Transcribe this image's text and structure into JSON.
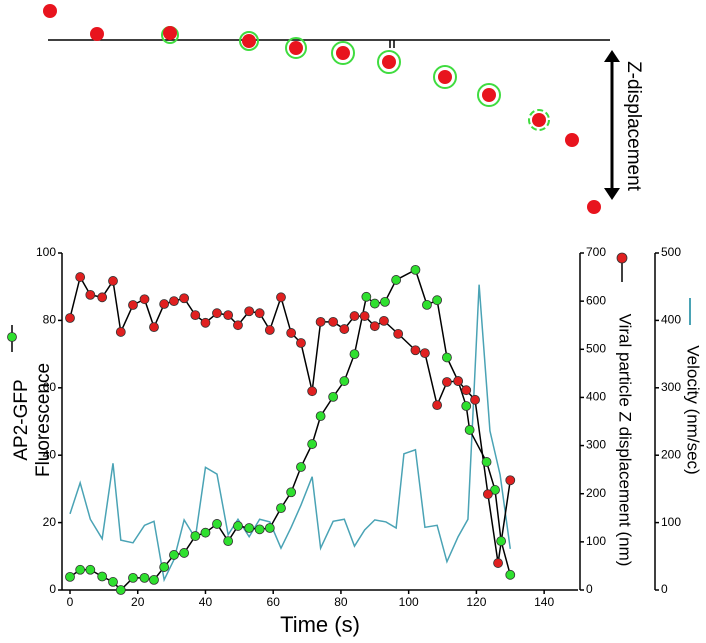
{
  "chart_data": {
    "type": "line",
    "annotation": "Z-displacement",
    "xlabel": "Time (s)",
    "ylabel": [
      "AP2-GFP",
      "Fluorescence"
    ],
    "y2label": "Viral particle Z displacement  (nm)",
    "y3label": "Velocity (nm/sec)",
    "xlim": [
      0,
      150
    ],
    "xticks": [
      0,
      20,
      40,
      60,
      80,
      100,
      120,
      140
    ],
    "ylim": [
      0,
      100
    ],
    "yticks": [
      0,
      20,
      40,
      60,
      80,
      100
    ],
    "y2lim": [
      0,
      700
    ],
    "y2ticks": [
      0,
      100,
      200,
      300,
      400,
      500,
      600,
      700
    ],
    "y3lim": [
      0,
      500
    ],
    "y3ticks": [
      0,
      100,
      200,
      300,
      400,
      500
    ],
    "series": [
      {
        "name": "AP2-GFP Fluorescence",
        "color": "#2fe02f",
        "axis": "y",
        "marker": true,
        "x": [
          0,
          3,
          6,
          9.5,
          12.7,
          15,
          18.6,
          22,
          24.8,
          27.8,
          30.7,
          33.7,
          37,
          40,
          43.4,
          46.7,
          49.6,
          52.9,
          56,
          59,
          62.3,
          65.3,
          68.2,
          71.5,
          74,
          77.7,
          81,
          84,
          87.5,
          90,
          93,
          96.3,
          102,
          105.4,
          108.4,
          111.3,
          114.6,
          117,
          118,
          123,
          125.5,
          127.3,
          130
        ],
        "values": [
          3.9,
          6,
          6,
          4,
          2.4,
          0,
          3.6,
          3.6,
          3,
          6.8,
          10.4,
          11,
          16,
          17,
          19.6,
          14.5,
          19,
          18.4,
          18,
          18.4,
          24.3,
          29,
          36.5,
          43.3,
          51.6,
          57.3,
          62,
          70,
          87,
          85,
          85.5,
          92,
          95,
          84.6,
          86,
          69,
          62,
          54.6,
          47.5,
          38,
          29.7,
          14.5,
          4.5
        ]
      },
      {
        "name": "Viral particle Z displacement",
        "color": "#e02020",
        "axis": "y2",
        "marker": true,
        "x": [
          0,
          3,
          6,
          9.5,
          12.7,
          15,
          18.6,
          22,
          24.8,
          27.8,
          30.7,
          33.7,
          37,
          40,
          43.4,
          46.7,
          49.6,
          52.9,
          56,
          59,
          62.3,
          65.3,
          68.2,
          71.5,
          74,
          77.7,
          81,
          84,
          87,
          90,
          92.7,
          96.9,
          102,
          104.8,
          108.4,
          111.3,
          114.6,
          117,
          119.6,
          123.4,
          126.4,
          130
        ],
        "values": [
          565,
          650,
          613,
          608,
          642,
          536,
          592,
          604,
          546,
          594,
          600,
          606,
          571,
          555,
          575,
          571,
          550,
          579,
          575,
          540,
          608,
          534,
          513,
          413,
          557,
          557,
          542,
          569,
          569,
          548,
          559,
          532,
          498,
          492,
          384,
          432,
          434,
          415,
          395,
          199,
          56,
          228
        ]
      },
      {
        "name": "Velocity",
        "color": "#4aa3b5",
        "axis": "y3",
        "marker": false,
        "x": [
          0,
          3,
          6,
          9.5,
          12.7,
          15,
          18.6,
          22,
          24.8,
          27.8,
          30.7,
          33.7,
          37,
          40,
          43.4,
          46.7,
          49.6,
          52.9,
          56,
          59,
          62.3,
          65.3,
          68.2,
          71.5,
          74,
          77.7,
          81,
          84,
          87,
          90,
          93.3,
          96.3,
          98.6,
          102,
          104.8,
          108.4,
          111.3,
          114.6,
          117.5,
          120.8,
          124,
          127,
          130
        ],
        "values": [
          113,
          159,
          105,
          76,
          188,
          74,
          70,
          96,
          102,
          15,
          45,
          104,
          77,
          182,
          172,
          82,
          105,
          79,
          105,
          101,
          62,
          93,
          126,
          168,
          62,
          102,
          105,
          65,
          89,
          104,
          101,
          92,
          202,
          208,
          93,
          96,
          42,
          79,
          105,
          453,
          236,
          171,
          61
        ]
      }
    ]
  }
}
